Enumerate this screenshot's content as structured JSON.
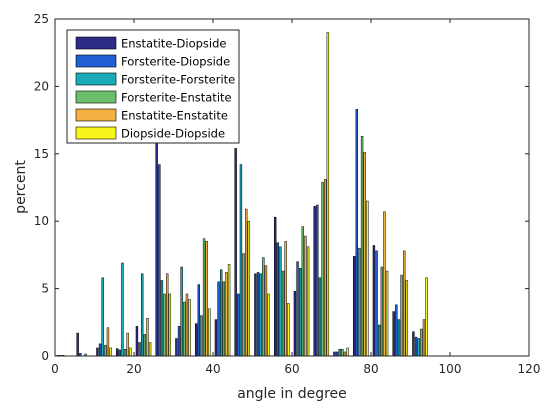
{
  "chart_data": {
    "type": "bar",
    "title": "",
    "xlabel": "angle in degree",
    "ylabel": "percent",
    "xlim": [
      0,
      120
    ],
    "ylim": [
      0,
      25
    ],
    "xticks": [
      "0",
      "20",
      "40",
      "60",
      "80",
      "100",
      "120"
    ],
    "yticks": [
      "0",
      "5",
      "10",
      "15",
      "20",
      "25"
    ],
    "grid": false,
    "legend_position": "top-left",
    "bin_width": 5,
    "x": [
      2.5,
      7.5,
      12.5,
      17.5,
      22.5,
      27.5,
      32.5,
      37.5,
      42.5,
      47.5,
      52.5,
      57.5,
      62.5,
      67.5,
      72.5,
      77.5,
      82.5,
      87.5,
      92.5,
      97.5,
      102.5,
      107.5
    ],
    "series": [
      {
        "name": "Enstatite-Diopside",
        "color": "#2c2c87",
        "values": [
          0.05,
          1.7,
          0.6,
          0.55,
          2.2,
          16.5,
          1.3,
          2.4,
          2.7,
          15.4,
          6.1,
          10.3,
          4.8,
          11.1,
          0.3,
          7.4,
          8.2,
          3.3,
          1.8,
          0,
          0,
          0
        ]
      },
      {
        "name": "Forsterite-Diopside",
        "color": "#1f5fd1",
        "values": [
          0.05,
          0.2,
          0.9,
          0.45,
          1.0,
          14.2,
          2.2,
          5.3,
          5.5,
          4.6,
          6.2,
          8.4,
          7.0,
          11.2,
          0.3,
          18.3,
          7.8,
          3.8,
          1.4,
          0,
          0,
          0
        ]
      },
      {
        "name": "Forsterite-Forsterite",
        "color": "#18aab8",
        "values": [
          0.05,
          0,
          5.8,
          6.9,
          6.1,
          5.6,
          6.6,
          3.0,
          6.4,
          14.2,
          6.1,
          8.1,
          6.5,
          5.8,
          0.5,
          8.0,
          2.3,
          2.7,
          1.3,
          0,
          0,
          0
        ]
      },
      {
        "name": "Forsterite-Enstatite",
        "color": "#6cbf6c",
        "values": [
          0,
          0.15,
          0.8,
          0.5,
          1.6,
          4.6,
          4.0,
          8.7,
          5.5,
          7.6,
          7.3,
          6.3,
          9.6,
          12.9,
          0.5,
          16.3,
          6.6,
          6.0,
          2.0,
          0,
          0,
          0
        ]
      },
      {
        "name": "Enstatite-Enstatite",
        "color": "#f4b243",
        "values": [
          0,
          0,
          2.1,
          1.7,
          2.8,
          6.1,
          4.6,
          8.5,
          6.2,
          10.9,
          6.7,
          8.5,
          8.9,
          13.1,
          0.3,
          15.1,
          10.7,
          7.8,
          2.7,
          0,
          0,
          0
        ]
      },
      {
        "name": "Diopside-Diopside",
        "color": "#f5f51a",
        "values": [
          0,
          0,
          0.6,
          0.6,
          1.0,
          4.6,
          4.2,
          3.5,
          6.8,
          10.0,
          4.6,
          3.9,
          8.1,
          24.0,
          0.6,
          11.5,
          6.3,
          5.6,
          5.8,
          0,
          0,
          0
        ]
      }
    ]
  }
}
